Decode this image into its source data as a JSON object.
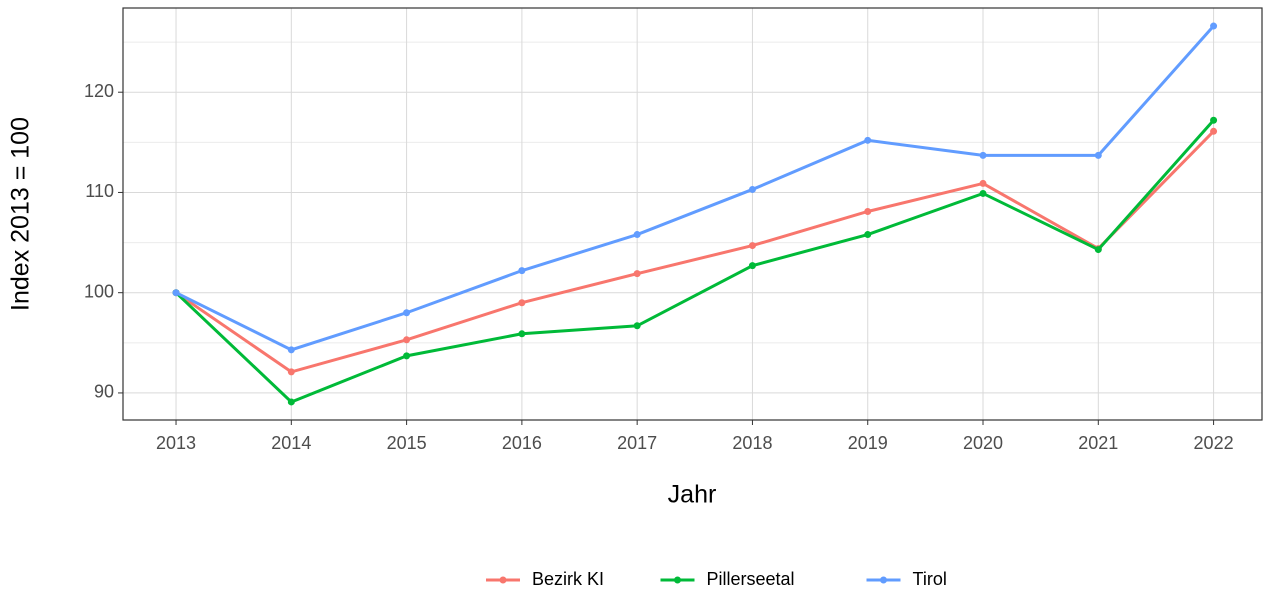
{
  "chart_data": {
    "type": "line",
    "x_label": "Jahr",
    "y_label": "Index  2013  = 100",
    "x": [
      2013,
      2014,
      2015,
      2016,
      2017,
      2018,
      2019,
      2020,
      2021,
      2022
    ],
    "series": [
      {
        "name": "Bezirk KI",
        "color": "#F8766D",
        "values": [
          100,
          92.1,
          95.3,
          99.0,
          101.9,
          104.7,
          108.1,
          110.9,
          104.4,
          116.1
        ]
      },
      {
        "name": "Pillerseetal",
        "color": "#00BA38",
        "values": [
          100,
          89.1,
          93.7,
          95.9,
          96.7,
          102.7,
          105.8,
          109.9,
          104.3,
          117.2
        ]
      },
      {
        "name": "Tirol",
        "color": "#619CFF",
        "values": [
          100,
          94.3,
          98.0,
          102.2,
          105.8,
          110.3,
          115.2,
          113.7,
          113.7,
          126.6
        ]
      }
    ],
    "xlim": [
      2012.54,
      2022.42
    ],
    "xticks": [
      2013,
      2014,
      2015,
      2016,
      2017,
      2018,
      2019,
      2020,
      2021,
      2022
    ],
    "ylim": [
      87.3,
      128.4
    ],
    "yticks": [
      90,
      100,
      110,
      120
    ],
    "grid": true,
    "legend": "bottom"
  }
}
